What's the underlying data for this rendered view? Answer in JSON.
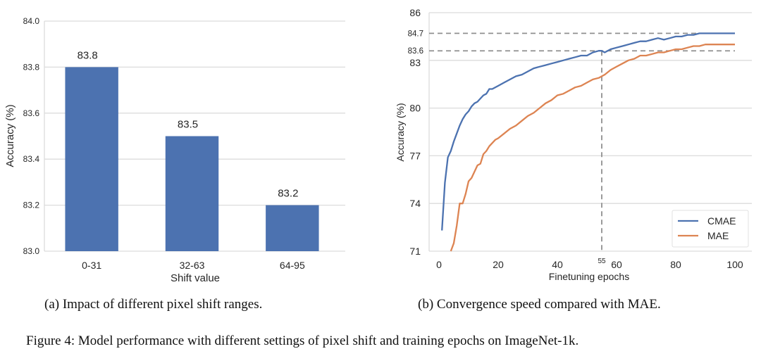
{
  "chart_data": [
    {
      "type": "bar",
      "title": "",
      "categories": [
        "0-31",
        "32-63",
        "64-95"
      ],
      "values": [
        83.8,
        83.5,
        83.2
      ],
      "data_labels": [
        "83.8",
        "83.5",
        "83.2"
      ],
      "xlabel": "Shift value",
      "ylabel": "Accuracy (%)",
      "ylim": [
        83.0,
        84.0
      ],
      "yticks": [
        "83.0",
        "83.2",
        "83.4",
        "83.6",
        "83.8",
        "84.0"
      ],
      "ytick_values": [
        83.0,
        83.2,
        83.4,
        83.6,
        83.8,
        84.0
      ],
      "grid": true,
      "color": "#4c72b0",
      "caption": "(a) Impact of different pixel shift ranges."
    },
    {
      "type": "line",
      "title": "",
      "xlabel": "Finetuning epochs",
      "ylabel": "Accuracy (%)",
      "xlim": [
        -3,
        103
      ],
      "ylim": [
        71,
        86
      ],
      "xticks": [
        "0",
        "20",
        "40",
        "60",
        "80",
        "100"
      ],
      "xtick_values": [
        0,
        20,
        40,
        60,
        80,
        100
      ],
      "yticks": [
        "71",
        "74",
        "77",
        "80",
        "83",
        "86"
      ],
      "ytick_values": [
        71,
        74,
        77,
        80,
        83,
        86
      ],
      "annotations": {
        "hlines": [
          {
            "y": 84.7,
            "label": "84.7"
          },
          {
            "y": 83.6,
            "label": "83.6"
          }
        ],
        "vline": {
          "x": 55,
          "label": "55"
        }
      },
      "grid": true,
      "legend": {
        "position": "bottom-right",
        "entries": [
          "CMAE",
          "MAE"
        ]
      },
      "series": [
        {
          "name": "CMAE",
          "color": "#4c72b0",
          "x": [
            1,
            2,
            3,
            4,
            5,
            6,
            7,
            8,
            9,
            10,
            11,
            12,
            13,
            14,
            15,
            16,
            17,
            18,
            19,
            20,
            22,
            24,
            26,
            28,
            30,
            32,
            34,
            36,
            38,
            40,
            42,
            44,
            46,
            48,
            50,
            52,
            54,
            55,
            56,
            58,
            60,
            62,
            64,
            66,
            68,
            70,
            72,
            74,
            76,
            78,
            80,
            82,
            84,
            86,
            88,
            90,
            92,
            94,
            96,
            98,
            100
          ],
          "y": [
            72.3,
            75.3,
            76.9,
            77.3,
            77.9,
            78.4,
            78.9,
            79.3,
            79.6,
            79.8,
            80.1,
            80.3,
            80.4,
            80.6,
            80.8,
            80.9,
            81.2,
            81.2,
            81.3,
            81.4,
            81.6,
            81.8,
            82.0,
            82.1,
            82.3,
            82.5,
            82.6,
            82.7,
            82.8,
            82.9,
            83.0,
            83.1,
            83.2,
            83.3,
            83.3,
            83.5,
            83.6,
            83.6,
            83.5,
            83.7,
            83.8,
            83.9,
            84.0,
            84.1,
            84.2,
            84.2,
            84.3,
            84.4,
            84.3,
            84.4,
            84.5,
            84.5,
            84.6,
            84.6,
            84.7,
            84.7,
            84.7,
            84.7,
            84.7,
            84.7,
            84.7
          ]
        },
        {
          "name": "MAE",
          "color": "#dd8452",
          "x": [
            4,
            5,
            6,
            7,
            8,
            9,
            10,
            11,
            12,
            13,
            14,
            15,
            16,
            17,
            18,
            19,
            20,
            22,
            24,
            26,
            28,
            30,
            32,
            34,
            36,
            38,
            40,
            42,
            44,
            46,
            48,
            50,
            52,
            54,
            55,
            56,
            58,
            60,
            62,
            64,
            66,
            68,
            70,
            72,
            74,
            76,
            78,
            80,
            82,
            84,
            86,
            88,
            90,
            92,
            94,
            96,
            98,
            100
          ],
          "y": [
            71.0,
            71.5,
            72.6,
            74.0,
            74.0,
            74.6,
            75.4,
            75.6,
            76.0,
            76.4,
            76.5,
            77.1,
            77.3,
            77.6,
            77.8,
            78.0,
            78.1,
            78.4,
            78.7,
            78.9,
            79.2,
            79.5,
            79.7,
            80.0,
            80.3,
            80.5,
            80.8,
            80.9,
            81.1,
            81.3,
            81.4,
            81.6,
            81.8,
            81.9,
            82.0,
            82.1,
            82.4,
            82.6,
            82.8,
            83.0,
            83.1,
            83.3,
            83.3,
            83.4,
            83.5,
            83.5,
            83.6,
            83.7,
            83.7,
            83.8,
            83.9,
            83.9,
            84.0,
            84.0,
            84.0,
            84.0,
            84.0,
            84.0
          ]
        }
      ],
      "caption": "(b) Convergence speed compared with MAE."
    }
  ],
  "figure_caption": "Figure 4: Model performance with different settings of pixel shift and training epochs on ImageNet-1k."
}
